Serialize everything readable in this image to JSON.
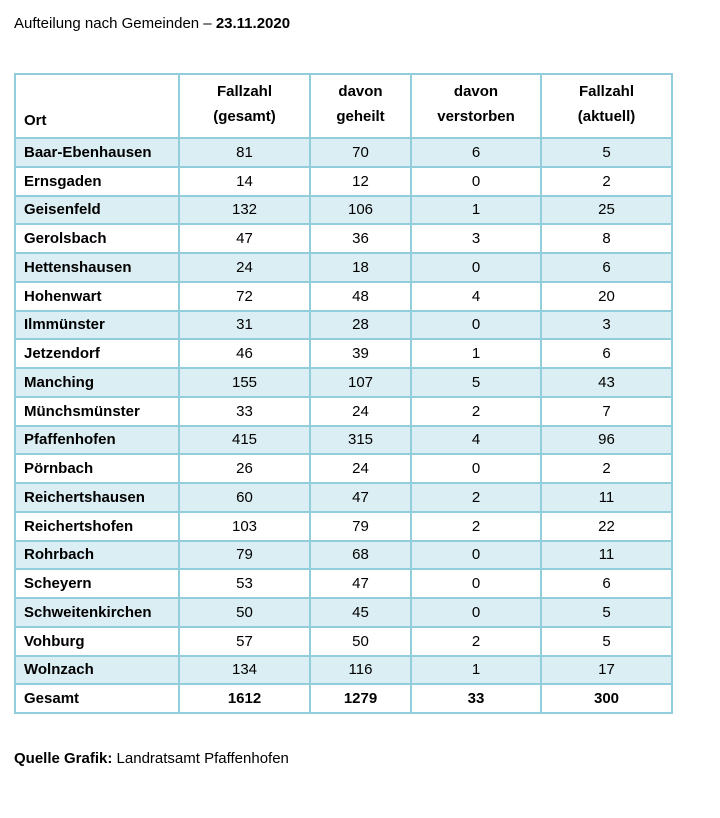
{
  "title": {
    "prefix": "Aufteilung nach Gemeinden –",
    "date": "23.11.2020"
  },
  "table": {
    "header": {
      "ort": "Ort",
      "cols": [
        {
          "line1": "Fallzahl",
          "line2": "(gesamt)"
        },
        {
          "line1": "davon",
          "line2": "geheilt"
        },
        {
          "line1": "davon",
          "line2": "verstorben"
        },
        {
          "line1": "Fallzahl",
          "line2": "(aktuell)"
        }
      ]
    },
    "rows": [
      {
        "ort": "Baar-Ebenhausen",
        "gesamt": 81,
        "geheilt": 70,
        "verstorben": 6,
        "aktuell": 5
      },
      {
        "ort": "Ernsgaden",
        "gesamt": 14,
        "geheilt": 12,
        "verstorben": 0,
        "aktuell": 2
      },
      {
        "ort": "Geisenfeld",
        "gesamt": 132,
        "geheilt": 106,
        "verstorben": 1,
        "aktuell": 25
      },
      {
        "ort": "Gerolsbach",
        "gesamt": 47,
        "geheilt": 36,
        "verstorben": 3,
        "aktuell": 8
      },
      {
        "ort": "Hettenshausen",
        "gesamt": 24,
        "geheilt": 18,
        "verstorben": 0,
        "aktuell": 6
      },
      {
        "ort": "Hohenwart",
        "gesamt": 72,
        "geheilt": 48,
        "verstorben": 4,
        "aktuell": 20
      },
      {
        "ort": "Ilmmünster",
        "gesamt": 31,
        "geheilt": 28,
        "verstorben": 0,
        "aktuell": 3
      },
      {
        "ort": "Jetzendorf",
        "gesamt": 46,
        "geheilt": 39,
        "verstorben": 1,
        "aktuell": 6
      },
      {
        "ort": "Manching",
        "gesamt": 155,
        "geheilt": 107,
        "verstorben": 5,
        "aktuell": 43
      },
      {
        "ort": "Münchsmünster",
        "gesamt": 33,
        "geheilt": 24,
        "verstorben": 2,
        "aktuell": 7
      },
      {
        "ort": "Pfaffenhofen",
        "gesamt": 415,
        "geheilt": 315,
        "verstorben": 4,
        "aktuell": 96
      },
      {
        "ort": "Pörnbach",
        "gesamt": 26,
        "geheilt": 24,
        "verstorben": 0,
        "aktuell": 2
      },
      {
        "ort": "Reichertshausen",
        "gesamt": 60,
        "geheilt": 47,
        "verstorben": 2,
        "aktuell": 11
      },
      {
        "ort": "Reichertshofen",
        "gesamt": 103,
        "geheilt": 79,
        "verstorben": 2,
        "aktuell": 22
      },
      {
        "ort": "Rohrbach",
        "gesamt": 79,
        "geheilt": 68,
        "verstorben": 0,
        "aktuell": 11
      },
      {
        "ort": "Scheyern",
        "gesamt": 53,
        "geheilt": 47,
        "verstorben": 0,
        "aktuell": 6
      },
      {
        "ort": "Schweitenkirchen",
        "gesamt": 50,
        "geheilt": 45,
        "verstorben": 0,
        "aktuell": 5
      },
      {
        "ort": "Vohburg",
        "gesamt": 57,
        "geheilt": 50,
        "verstorben": 2,
        "aktuell": 5
      },
      {
        "ort": "Wolnzach",
        "gesamt": 134,
        "geheilt": 116,
        "verstorben": 1,
        "aktuell": 17
      }
    ],
    "total": {
      "ort": "Gesamt",
      "gesamt": 1612,
      "geheilt": 1279,
      "verstorben": 33,
      "aktuell": 300
    }
  },
  "source": {
    "label": "Quelle Grafik:",
    "text": "Landratsamt Pfaffenhofen"
  },
  "colors": {
    "row_band": "#DBEEF3",
    "border": "#92CDDC",
    "text": "#000000"
  }
}
